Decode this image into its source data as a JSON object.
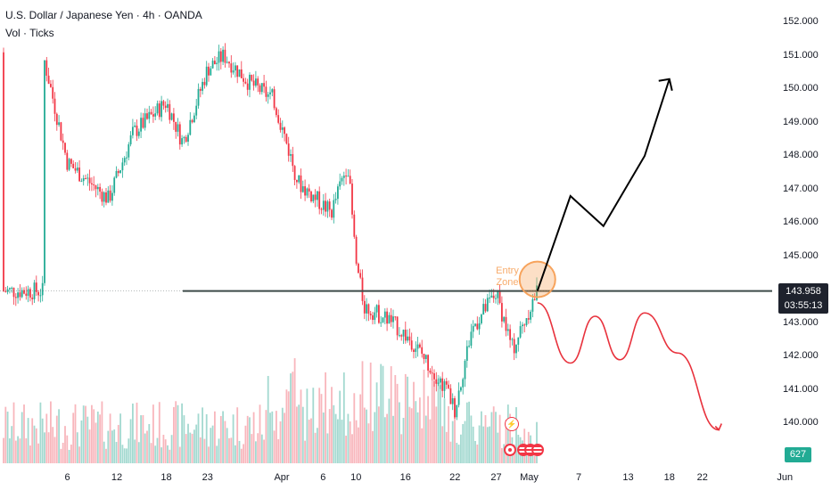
{
  "header": {
    "title": "U.S. Dollar / Japanese Yen · 4h · OANDA",
    "subtitle": "Vol · Ticks"
  },
  "price_axis": {
    "ticks": [
      "152.000",
      "151.000",
      "150.000",
      "149.000",
      "148.000",
      "147.000",
      "146.000",
      "145.000",
      "143.000",
      "142.000",
      "141.000",
      "140.000"
    ],
    "current_price": "143.958",
    "countdown": "03:55:13",
    "volume_value": "627"
  },
  "time_axis": {
    "ticks": [
      "6",
      "12",
      "18",
      "23",
      "Apr",
      "6",
      "10",
      "16",
      "22",
      "27",
      "May",
      "7",
      "13",
      "18",
      "22",
      "Jun"
    ]
  },
  "annotations": {
    "entry_zone_label": "Entry Zone",
    "event_icon": "lightning-icon",
    "flag_icons": [
      "event-dot-icon",
      "us-flag-icon",
      "us-flag-icon",
      "us-flag-icon"
    ]
  },
  "colors": {
    "up": "#22ab94",
    "down": "#f23645",
    "volume_up": "#a3d9d0",
    "volume_down": "#f8b6bc",
    "horizontal_line": "#3d4a48",
    "bull_path": "#000000",
    "bear_path": "#e8323d",
    "entry_zone": "#f7a35c"
  },
  "chart_data": {
    "type": "line",
    "title": "U.S. Dollar / Japanese Yen · 4h · OANDA",
    "y_unit": "JPY",
    "ylim": [
      139.4,
      152.4
    ],
    "price_path": {
      "x": [
        "Mar 3",
        "Mar 6",
        "Mar 11",
        "Mar 14",
        "Mar 18",
        "Mar 20",
        "Mar 23",
        "Mar 25",
        "Mar 28",
        "Mar 31",
        "Apr 3",
        "Apr 7",
        "Apr 9",
        "Apr 10",
        "Apr 11",
        "Apr 14",
        "Apr 17",
        "Apr 21",
        "Apr 22",
        "Apr 24",
        "Apr 27",
        "Apr 29",
        "May 1",
        "May 2"
      ],
      "values": [
        151.1,
        147.8,
        146.7,
        148.7,
        149.6,
        148.4,
        150.6,
        151.0,
        150.2,
        149.7,
        147.2,
        146.3,
        147.8,
        144.8,
        143.5,
        143.1,
        142.4,
        141.0,
        140.4,
        142.8,
        143.9,
        142.2,
        143.4,
        143.958
      ]
    },
    "horizontal_level": 143.958,
    "projected_bull_path": {
      "x": [
        "May 2",
        "May 6",
        "May 10",
        "May 15",
        "May 18"
      ],
      "values": [
        143.958,
        146.8,
        145.9,
        148.0,
        150.3
      ]
    },
    "projected_bear_path": {
      "x": [
        "May 2",
        "May 6",
        "May 9",
        "May 12",
        "May 15",
        "May 19",
        "May 24"
      ],
      "values": [
        143.6,
        141.8,
        143.2,
        141.9,
        143.3,
        142.1,
        139.8
      ]
    },
    "grid": false,
    "legend": "none"
  }
}
